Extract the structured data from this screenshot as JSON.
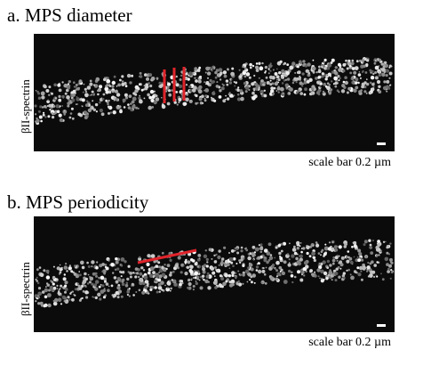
{
  "panels": [
    {
      "title": "a. MPS diameter",
      "ylabel": "βII-spectrin",
      "scale_label": "scale bar 0.2 µm"
    },
    {
      "title": "b. MPS periodicity",
      "ylabel": "βII-spectrin",
      "scale_label": "scale bar 0.2 µm"
    }
  ]
}
